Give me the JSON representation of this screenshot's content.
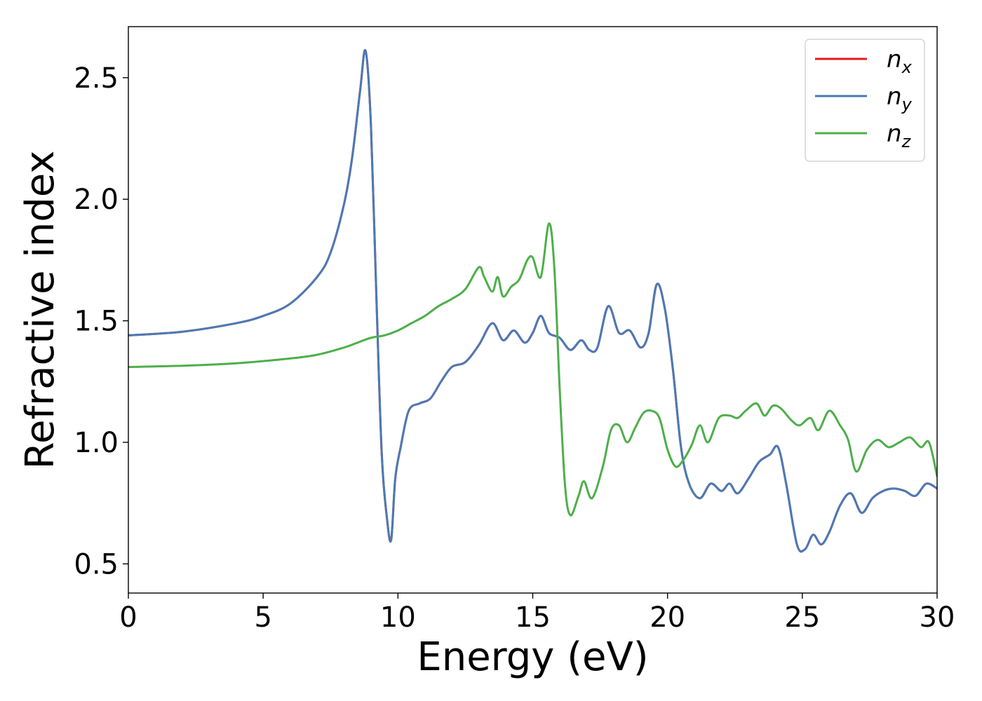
{
  "chart_data": {
    "type": "line",
    "xlabel": "Energy (eV)",
    "ylabel": "Refractive index",
    "xlim": [
      0,
      30
    ],
    "ylim": [
      0.38,
      2.71
    ],
    "xticks": [
      0,
      5,
      10,
      15,
      20,
      25,
      30
    ],
    "xtick_labels": [
      "0",
      "5",
      "10",
      "15",
      "20",
      "25",
      "30"
    ],
    "yticks": [
      0.5,
      1.0,
      1.5,
      2.0,
      2.5
    ],
    "ytick_labels": [
      "0.5",
      "1.0",
      "1.5",
      "2.0",
      "2.5"
    ],
    "grid": false,
    "legend_position": "top-right",
    "series": [
      {
        "name": "n",
        "subscript": "x",
        "color": "#e41a1c",
        "x": [
          0,
          2,
          4,
          5,
          6,
          7,
          7.5,
          8,
          8.3,
          8.6,
          8.8,
          9.0,
          9.2,
          9.4,
          9.6,
          9.75,
          9.9,
          10.1,
          10.4,
          10.8,
          11.2,
          11.6,
          12.0,
          12.5,
          13.0,
          13.5,
          13.9,
          14.3,
          14.7,
          15.0,
          15.3,
          15.6,
          16.0,
          16.4,
          16.8,
          17.1,
          17.4,
          17.8,
          18.2,
          18.6,
          19.0,
          19.3,
          19.6,
          19.9,
          20.2,
          20.5,
          20.8,
          21.2,
          21.6,
          22.0,
          22.3,
          22.6,
          23.0,
          23.4,
          23.8,
          24.1,
          24.4,
          24.8,
          25.1,
          25.4,
          25.7,
          26.0,
          26.4,
          26.8,
          27.2,
          27.6,
          28.0,
          28.4,
          28.8,
          29.2,
          29.6,
          30.0
        ],
        "y": [
          1.44,
          1.455,
          1.49,
          1.52,
          1.57,
          1.68,
          1.78,
          1.98,
          2.17,
          2.45,
          2.61,
          2.3,
          1.6,
          0.95,
          0.68,
          0.6,
          0.85,
          0.98,
          1.13,
          1.16,
          1.18,
          1.25,
          1.31,
          1.33,
          1.4,
          1.49,
          1.42,
          1.46,
          1.41,
          1.45,
          1.52,
          1.45,
          1.43,
          1.38,
          1.42,
          1.38,
          1.39,
          1.56,
          1.45,
          1.46,
          1.39,
          1.45,
          1.65,
          1.55,
          1.3,
          0.98,
          0.83,
          0.77,
          0.83,
          0.8,
          0.83,
          0.79,
          0.85,
          0.92,
          0.95,
          0.98,
          0.83,
          0.58,
          0.56,
          0.62,
          0.58,
          0.63,
          0.74,
          0.79,
          0.71,
          0.77,
          0.8,
          0.81,
          0.8,
          0.78,
          0.83,
          0.81
        ]
      },
      {
        "name": "n",
        "subscript": "y",
        "color": "#4a7ab5",
        "x": [
          0,
          2,
          4,
          5,
          6,
          7,
          7.5,
          8,
          8.3,
          8.6,
          8.8,
          9.0,
          9.2,
          9.4,
          9.6,
          9.75,
          9.9,
          10.1,
          10.4,
          10.8,
          11.2,
          11.6,
          12.0,
          12.5,
          13.0,
          13.5,
          13.9,
          14.3,
          14.7,
          15.0,
          15.3,
          15.6,
          16.0,
          16.4,
          16.8,
          17.1,
          17.4,
          17.8,
          18.2,
          18.6,
          19.0,
          19.3,
          19.6,
          19.9,
          20.2,
          20.5,
          20.8,
          21.2,
          21.6,
          22.0,
          22.3,
          22.6,
          23.0,
          23.4,
          23.8,
          24.1,
          24.4,
          24.8,
          25.1,
          25.4,
          25.7,
          26.0,
          26.4,
          26.8,
          27.2,
          27.6,
          28.0,
          28.4,
          28.8,
          29.2,
          29.6,
          30.0
        ],
        "y": [
          1.44,
          1.455,
          1.49,
          1.52,
          1.57,
          1.68,
          1.78,
          1.98,
          2.17,
          2.45,
          2.61,
          2.3,
          1.6,
          0.95,
          0.68,
          0.6,
          0.85,
          0.98,
          1.13,
          1.16,
          1.18,
          1.25,
          1.31,
          1.33,
          1.4,
          1.49,
          1.42,
          1.46,
          1.41,
          1.45,
          1.52,
          1.45,
          1.43,
          1.38,
          1.42,
          1.38,
          1.39,
          1.56,
          1.45,
          1.46,
          1.39,
          1.45,
          1.65,
          1.55,
          1.3,
          0.98,
          0.83,
          0.77,
          0.83,
          0.8,
          0.83,
          0.79,
          0.85,
          0.92,
          0.95,
          0.98,
          0.83,
          0.58,
          0.56,
          0.62,
          0.58,
          0.63,
          0.74,
          0.79,
          0.71,
          0.77,
          0.8,
          0.81,
          0.8,
          0.78,
          0.83,
          0.81
        ]
      },
      {
        "name": "n",
        "subscript": "z",
        "color": "#4daf4a",
        "x": [
          0,
          2,
          4,
          6,
          7,
          8,
          8.5,
          9.0,
          9.5,
          10.0,
          10.5,
          11.0,
          11.5,
          12.0,
          12.5,
          13.0,
          13.2,
          13.5,
          13.7,
          13.9,
          14.2,
          14.5,
          14.8,
          15.0,
          15.3,
          15.6,
          15.8,
          16.0,
          16.2,
          16.4,
          16.7,
          16.9,
          17.2,
          17.6,
          17.9,
          18.2,
          18.5,
          18.8,
          19.1,
          19.4,
          19.7,
          20.0,
          20.3,
          20.6,
          20.9,
          21.2,
          21.5,
          21.9,
          22.3,
          22.6,
          22.9,
          23.3,
          23.6,
          23.9,
          24.2,
          24.6,
          24.9,
          25.3,
          25.6,
          26.0,
          26.4,
          26.7,
          27.0,
          27.4,
          27.8,
          28.2,
          28.6,
          29.0,
          29.4,
          29.7,
          30.0
        ],
        "y": [
          1.31,
          1.315,
          1.325,
          1.345,
          1.36,
          1.39,
          1.41,
          1.43,
          1.44,
          1.46,
          1.49,
          1.52,
          1.56,
          1.59,
          1.63,
          1.72,
          1.68,
          1.62,
          1.68,
          1.6,
          1.64,
          1.67,
          1.75,
          1.76,
          1.68,
          1.9,
          1.72,
          1.22,
          0.82,
          0.7,
          0.78,
          0.84,
          0.77,
          0.9,
          1.05,
          1.07,
          1.0,
          1.06,
          1.12,
          1.13,
          1.1,
          0.97,
          0.9,
          0.93,
          0.99,
          1.07,
          1.0,
          1.1,
          1.11,
          1.1,
          1.13,
          1.16,
          1.11,
          1.15,
          1.14,
          1.09,
          1.07,
          1.1,
          1.05,
          1.13,
          1.07,
          1.01,
          0.88,
          0.97,
          1.01,
          0.98,
          1.0,
          1.02,
          0.98,
          1.0,
          0.86
        ]
      }
    ]
  }
}
